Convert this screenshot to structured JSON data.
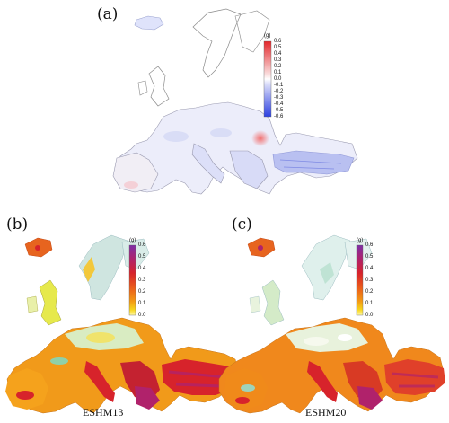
{
  "panels": {
    "a": {
      "label": "(a)",
      "colorbar_title": "(g)",
      "ticks": [
        "0.6",
        "0.5",
        "0.4",
        "0.3",
        "0.2",
        "0.1",
        "0.0",
        "-0.1",
        "-0.2",
        "-0.3",
        "-0.4",
        "-0.5",
        "-0.6"
      ],
      "colors": {
        "positive": "#e8262b",
        "negative": "#2b3fe0",
        "zero": "#ffffff"
      }
    },
    "b": {
      "label": "(b)",
      "colorbar_title": "(g)",
      "caption": "ESHM13",
      "ticks": [
        "0.6",
        "0.5",
        "0.4",
        "0.3",
        "0.2",
        "0.1",
        "0.0"
      ]
    },
    "c": {
      "label": "(c)",
      "colorbar_title": "(g)",
      "caption": "ESHM20",
      "ticks": [
        "0.6",
        "0.5",
        "0.4",
        "0.3",
        "0.2",
        "0.1",
        "0.0"
      ]
    }
  },
  "hazard_scale": [
    "#fff7a0",
    "#f7d51c",
    "#f39a14",
    "#ea5a1b",
    "#d7232b",
    "#b0226b",
    "#7e2fa6"
  ]
}
